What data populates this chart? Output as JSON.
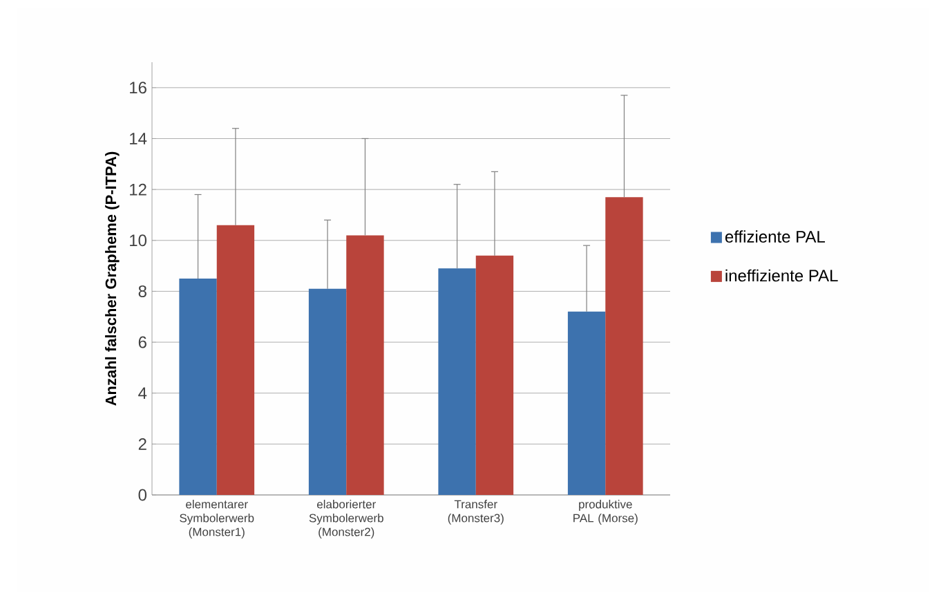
{
  "chart_data": {
    "type": "bar",
    "ylabel": "Anzahl falscher Grapheme (P-ITPA)",
    "categories": [
      "elementarer Symbolerwerb (Monster1)",
      "elaborierter Symbolerwerb (Monster2)",
      "Transfer (Monster3)",
      "produktive PAL (Morse)"
    ],
    "series": [
      {
        "name": "effiziente PAL",
        "color": "#3d72ae",
        "values": [
          8.5,
          8.1,
          8.9,
          7.2
        ],
        "errors": [
          [
            8.5,
            11.8
          ],
          [
            8.1,
            10.8
          ],
          [
            8.9,
            12.2
          ],
          [
            7.2,
            9.8
          ]
        ]
      },
      {
        "name": "ineffiziente PAL",
        "color": "#b9443b",
        "values": [
          10.6,
          10.2,
          9.4,
          11.7
        ],
        "errors": [
          [
            10.6,
            14.4
          ],
          [
            10.2,
            14.0
          ],
          [
            9.4,
            12.7
          ],
          [
            11.7,
            15.7
          ]
        ]
      }
    ],
    "ylim": [
      0,
      17
    ],
    "yticks": [
      0,
      2,
      4,
      6,
      8,
      10,
      12,
      14,
      16
    ],
    "grid": "y",
    "legend": "right"
  }
}
